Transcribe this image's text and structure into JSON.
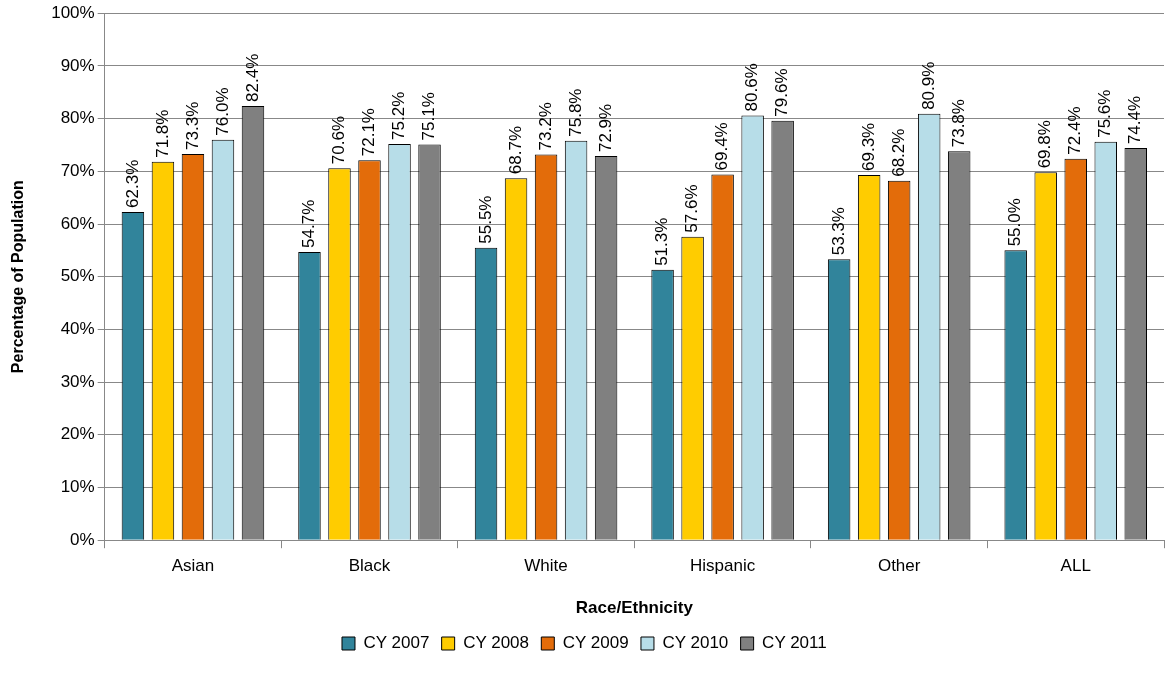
{
  "chart_data": {
    "type": "bar",
    "xlabel": "Race/Ethnicity",
    "ylabel": "Percentage of Population",
    "categories": [
      "Asian",
      "Black",
      "White",
      "Hispanic",
      "Other",
      "ALL"
    ],
    "series": [
      {
        "name": "CY 2007",
        "color": "#31849b",
        "values": [
          62.3,
          54.7,
          55.5,
          51.3,
          53.3,
          55.0
        ],
        "value_labels": [
          "62.3%",
          "54.7%",
          "55.5%",
          "51.3%",
          "53.3%",
          "55.0%"
        ]
      },
      {
        "name": "CY 2008",
        "color": "#ffcc00",
        "values": [
          71.8,
          70.6,
          68.7,
          57.6,
          69.3,
          69.8
        ],
        "value_labels": [
          "71.8%",
          "70.6%",
          "68.7%",
          "57.6%",
          "69.3%",
          "69.8%"
        ]
      },
      {
        "name": "CY 2009",
        "color": "#e36c0a",
        "values": [
          73.3,
          72.1,
          73.2,
          69.4,
          68.2,
          72.4
        ],
        "value_labels": [
          "73.3%",
          "72.1%",
          "73.2%",
          "69.4%",
          "68.2%",
          "72.4%"
        ]
      },
      {
        "name": "CY 2010",
        "color": "#b7dde8",
        "values": [
          76.0,
          75.2,
          75.8,
          80.6,
          80.9,
          75.6
        ],
        "value_labels": [
          "76.0%",
          "75.2%",
          "75.8%",
          "80.6%",
          "80.9%",
          "75.6%"
        ]
      },
      {
        "name": "CY 2011",
        "color": "#808080",
        "values": [
          82.4,
          75.1,
          72.9,
          79.6,
          73.8,
          74.4
        ],
        "value_labels": [
          "82.4%",
          "75.1%",
          "72.9%",
          "79.6%",
          "73.8%",
          "74.4%"
        ]
      }
    ],
    "ylim": [
      0,
      100
    ],
    "yticks": [
      {
        "value": 0,
        "label": "0%"
      },
      {
        "value": 10,
        "label": "10%"
      },
      {
        "value": 20,
        "label": "20%"
      },
      {
        "value": 30,
        "label": "30%"
      },
      {
        "value": 40,
        "label": "40%"
      },
      {
        "value": 50,
        "label": "50%"
      },
      {
        "value": 60,
        "label": "60%"
      },
      {
        "value": 70,
        "label": "70%"
      },
      {
        "value": 80,
        "label": "80%"
      },
      {
        "value": 90,
        "label": "90%"
      },
      {
        "value": 100,
        "label": "100%"
      }
    ],
    "grid": "y",
    "legend": "bottom"
  }
}
